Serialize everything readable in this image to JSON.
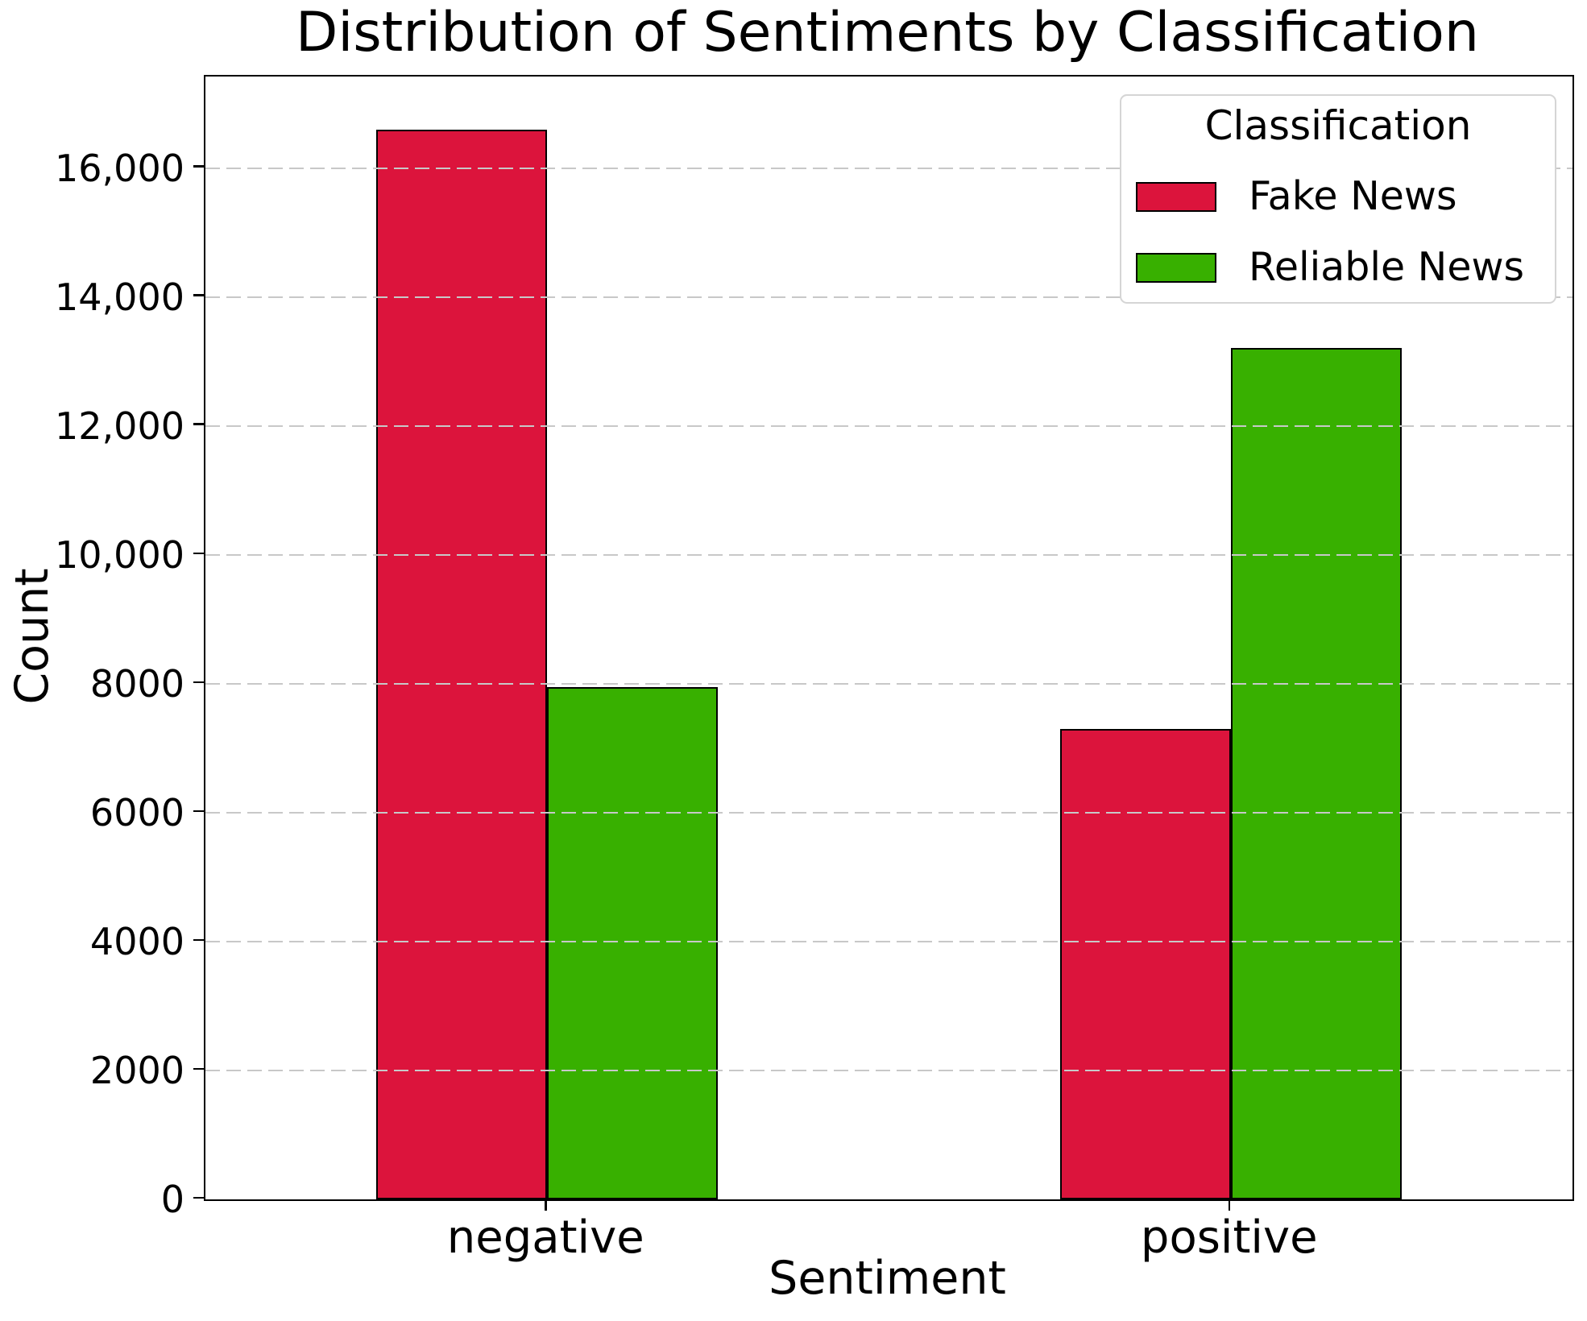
{
  "chart_data": {
    "type": "bar",
    "title": "Distribution of Sentiments by Classification",
    "xlabel": "Sentiment",
    "ylabel": "Count",
    "categories": [
      "negative",
      "positive"
    ],
    "series": [
      {
        "name": "Fake News",
        "color": "#DC143C",
        "values": [
          16590,
          7300
        ]
      },
      {
        "name": "Reliable News",
        "color": "#38B000",
        "values": [
          7950,
          13210
        ]
      }
    ],
    "ylim": [
      0,
      17420
    ],
    "yticks": [
      0,
      2000,
      4000,
      6000,
      8000,
      10000,
      12000,
      14000,
      16000
    ],
    "ytick_labels": [
      "0",
      "2000",
      "4000",
      "6000",
      "8000",
      "10,000",
      "12,000",
      "14,000",
      "16,000"
    ],
    "legend": {
      "title": "Classification",
      "position": "upper right"
    },
    "grid": {
      "axis": "y",
      "style": "dashed",
      "color": "#c8c8c8",
      "above_bars": true
    },
    "bar_edge_color": "#000000",
    "group_centers_fraction": [
      0.25,
      0.75
    ],
    "bar_width_fraction": 0.125
  }
}
